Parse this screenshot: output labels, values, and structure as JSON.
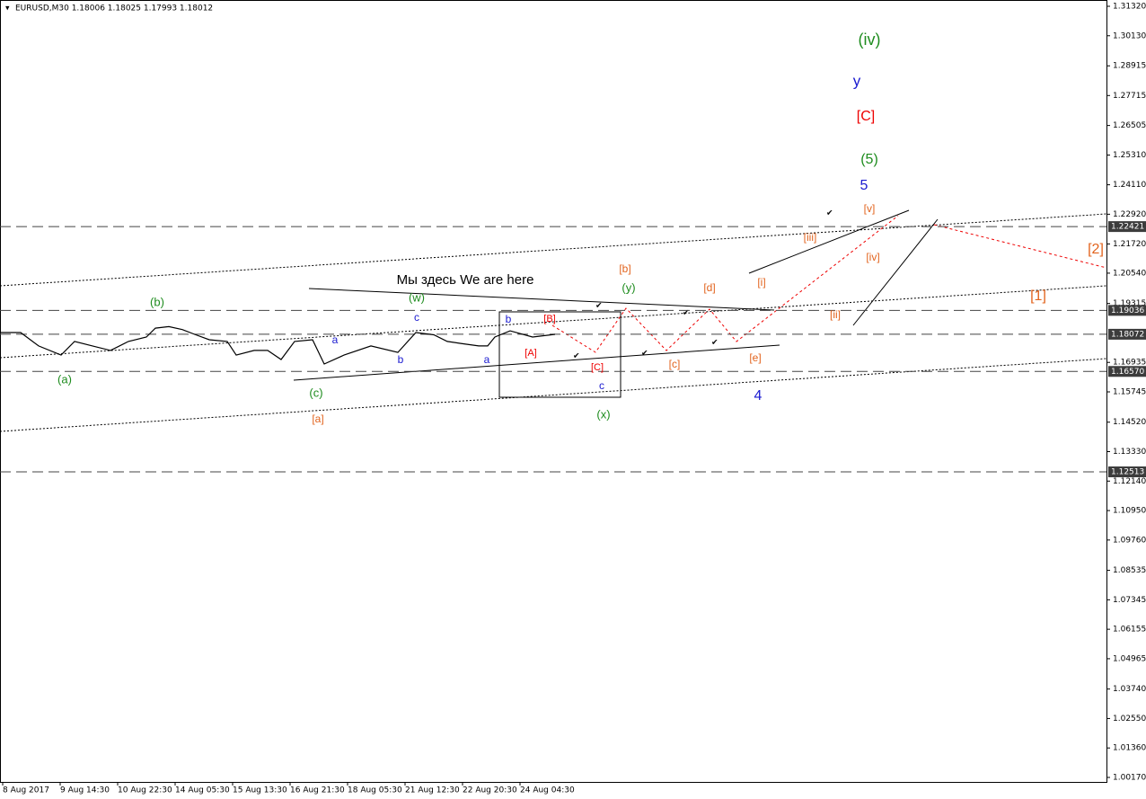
{
  "chart_data": {
    "type": "line",
    "header": "EURUSD,M30  1.18006 1.18025 1.17993 1.18012",
    "xlim": [
      -3,
      1229
    ],
    "ylim": [
      0.99988,
      1.31574
    ],
    "xticks": [
      {
        "value": 0,
        "label": "8 Aug 2017"
      },
      {
        "value": 64,
        "label": "9 Aug 14:30"
      },
      {
        "value": 128,
        "label": "10 Aug 22:30"
      },
      {
        "value": 192,
        "label": "14 Aug 05:30"
      },
      {
        "value": 256,
        "label": "15 Aug 13:30"
      },
      {
        "value": 320,
        "label": "16 Aug 21:30"
      },
      {
        "value": 384,
        "label": "18 Aug 05:30"
      },
      {
        "value": 448,
        "label": "21 Aug 12:30"
      },
      {
        "value": 512,
        "label": "22 Aug 20:30"
      },
      {
        "value": 576,
        "label": "24 Aug 04:30"
      }
    ],
    "yticks": [
      {
        "value": 1.3132,
        "label": "1.31320"
      },
      {
        "value": 1.3013,
        "label": "1.30130"
      },
      1.28915,
      1.27715,
      1.26505,
      {
        "value": 1.2531,
        "label": "1.25310"
      },
      {
        "value": 1.2411,
        "label": "1.24110"
      },
      {
        "value": 1.2292,
        "label": "1.22920"
      },
      {
        "value": 1.2172,
        "label": "1.21720"
      },
      {
        "value": 1.2054,
        "label": "1.20540"
      },
      1.19315,
      1.16935,
      1.15745,
      {
        "value": 1.1452,
        "label": "1.14520"
      },
      {
        "value": 1.1333,
        "label": "1.13330"
      },
      {
        "value": 1.1214,
        "label": "1.12140"
      },
      {
        "value": 1.1095,
        "label": "1.10950"
      },
      {
        "value": 1.0976,
        "label": "1.09760"
      },
      1.08535,
      1.07345,
      1.06155,
      1.04965,
      {
        "value": 1.0374,
        "label": "1.03740"
      },
      {
        "value": 1.0255,
        "label": "1.02550"
      },
      {
        "value": 1.0136,
        "label": "1.01360"
      },
      {
        "value": 1.0017,
        "label": "1.00170"
      }
    ],
    "levels": [
      1.22421,
      1.19036,
      1.18072,
      {
        "value": 1.1657,
        "label": "1.16570"
      },
      1.12513
    ],
    "series": [
      {
        "name": "EURUSD",
        "color": "#000000",
        "x": [
          -3,
          20,
          40,
          65,
          80,
          100,
          120,
          140,
          160,
          170,
          185,
          200,
          215,
          230,
          250,
          260,
          280,
          295,
          310,
          325,
          345,
          358,
          380,
          410,
          440,
          460,
          480,
          495,
          510,
          530,
          540,
          548,
          565,
          590,
          615
        ],
        "values": [
          1.1814,
          1.1814,
          1.176,
          1.1723,
          1.1778,
          1.176,
          1.1742,
          1.1778,
          1.1796,
          1.1832,
          1.1838,
          1.1826,
          1.1805,
          1.1785,
          1.1778,
          1.1723,
          1.1742,
          1.1742,
          1.1705,
          1.1778,
          1.1785,
          1.1687,
          1.1723,
          1.176,
          1.1734,
          1.1814,
          1.1805,
          1.1778,
          1.177,
          1.176,
          1.176,
          1.1796,
          1.1821,
          1.1796,
          1.1807
        ]
      }
    ],
    "annotations": [
      {
        "text": "(iv)",
        "color": "#1e8c1e"
      },
      {
        "text": "y",
        "color": "#1a1ad0"
      },
      {
        "text": "[C]",
        "color": "#ee0000"
      },
      {
        "text": "(5)",
        "color": "#1e8c1e"
      },
      {
        "text": "5",
        "color": "#1a1ad0"
      },
      {
        "text": "[v]",
        "color": "#e2631d"
      },
      {
        "text": "[iii]",
        "color": "#e2631d"
      },
      {
        "text": "[iv]",
        "color": "#e2631d"
      },
      {
        "text": "[2]",
        "color": "#e2631d"
      },
      {
        "text": "[1]",
        "color": "#e2631d"
      },
      {
        "text": "[i]",
        "color": "#e2631d"
      },
      {
        "text": "[ii]",
        "color": "#e2631d"
      },
      {
        "text": "[b]",
        "color": "#e2631d"
      },
      {
        "text": "[d]",
        "color": "#e2631d"
      },
      {
        "text": "[c]",
        "color": "#e2631d"
      },
      {
        "text": "[e]",
        "color": "#e2631d"
      },
      {
        "text": "(y)",
        "color": "#1e8c1e"
      },
      {
        "text": "(w)",
        "color": "#1e8c1e"
      },
      {
        "text": "(b)",
        "color": "#1e8c1e"
      },
      {
        "text": "(a)",
        "color": "#1e8c1e"
      },
      {
        "text": "(c)",
        "color": "#1e8c1e"
      },
      {
        "text": "(x)",
        "color": "#1e8c1e"
      },
      {
        "text": "[a]",
        "color": "#e2631d"
      },
      {
        "text": "c",
        "color": "#1a1ad0"
      },
      {
        "text": "a",
        "color": "#1a1ad0"
      },
      {
        "text": "b",
        "color": "#1a1ad0"
      },
      {
        "text": "a",
        "color": "#1a1ad0"
      },
      {
        "text": "b",
        "color": "#1a1ad0"
      },
      {
        "text": "c",
        "color": "#1a1ad0"
      },
      {
        "text": "4",
        "color": "#1a1ad0"
      },
      {
        "text": "[B]",
        "color": "#ee0000"
      },
      {
        "text": "[A]",
        "color": "#ee0000"
      },
      {
        "text": "[C]",
        "color": "#ee0000"
      },
      {
        "text": "Мы здесь We are here",
        "color": "#000000"
      }
    ]
  }
}
